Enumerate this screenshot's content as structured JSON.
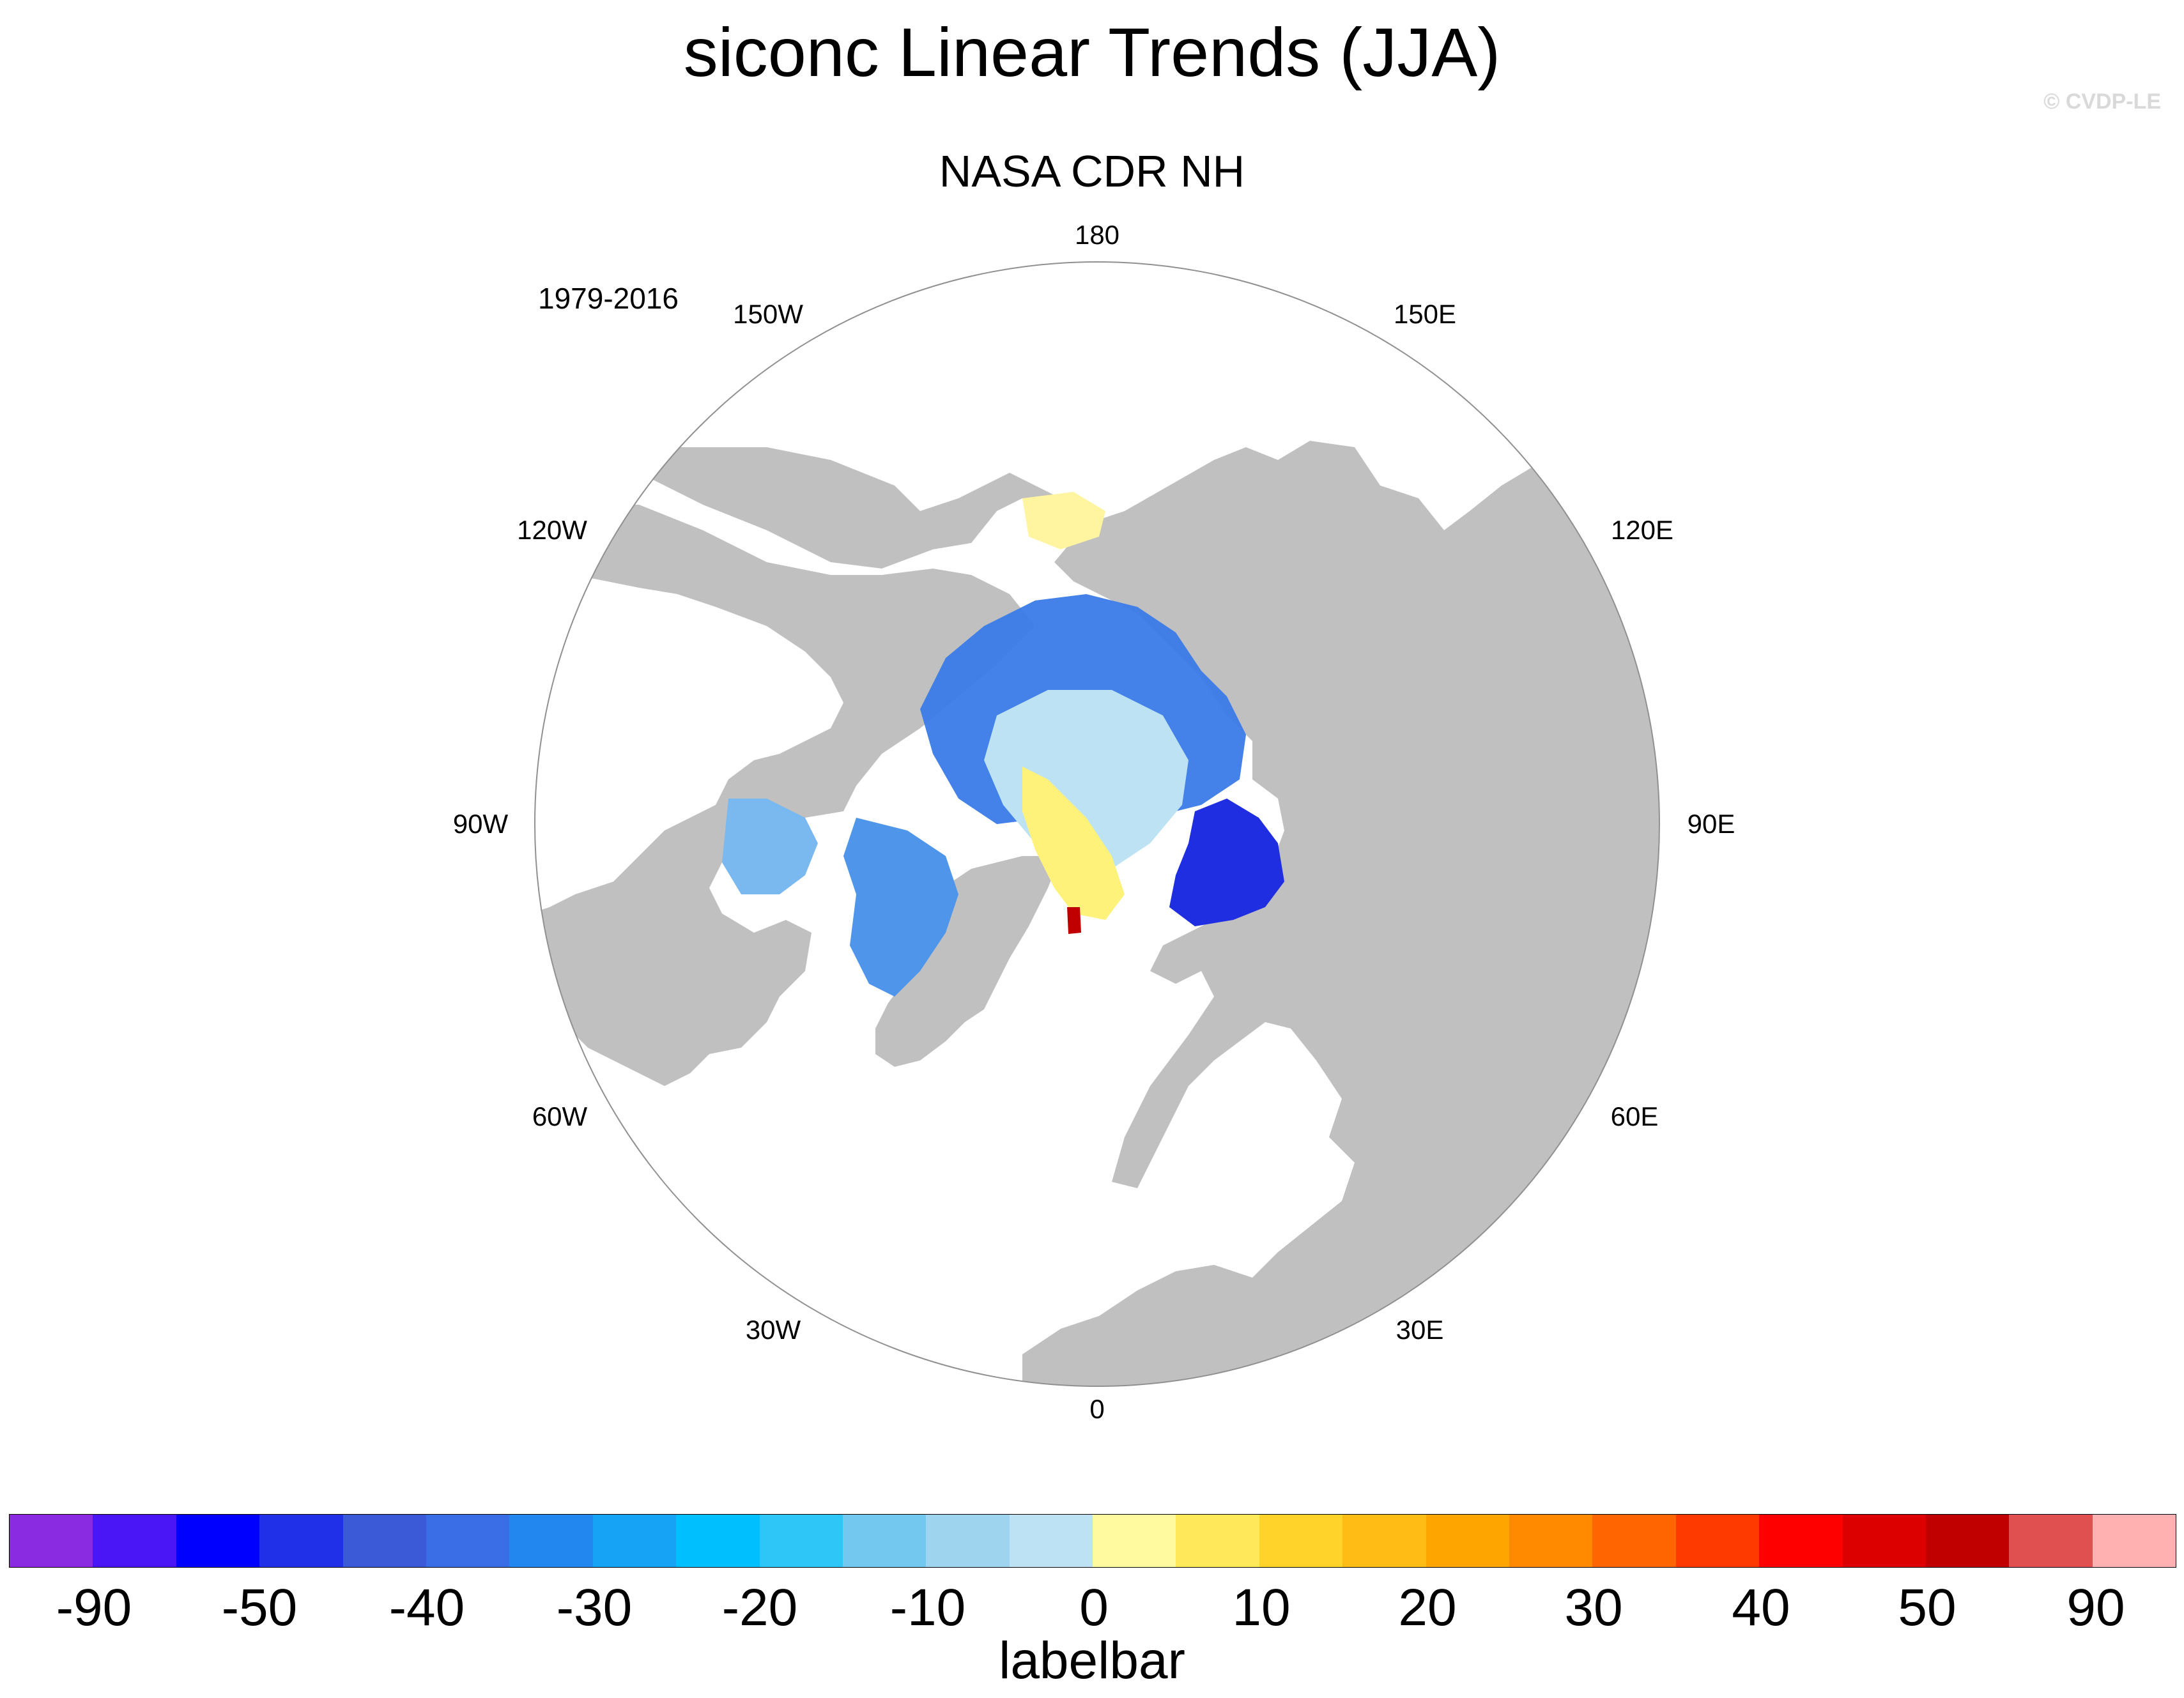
{
  "title": "siconc Linear Trends (JJA)",
  "copyright": "© CVDP-LE",
  "subtitle": "NASA CDR NH",
  "period": "1979-2016",
  "longitude_labels": [
    "180",
    "150E",
    "120E",
    "90E",
    "60E",
    "30E",
    "0",
    "30W",
    "60W",
    "90W",
    "120W",
    "150W"
  ],
  "labelbar": {
    "title": "labelbar",
    "colors": [
      "#8a2be2",
      "#4b16f5",
      "#0000ff",
      "#2030e8",
      "#3a5ad8",
      "#3a6ee6",
      "#2288f0",
      "#17a3f5",
      "#00bfff",
      "#2ec5f7",
      "#73c8f0",
      "#9fd4ef",
      "#bde2f4",
      "#fffaa0",
      "#ffe95a",
      "#ffd32a",
      "#ffbc14",
      "#ffa500",
      "#ff8a00",
      "#ff6500",
      "#ff3a00",
      "#ff0000",
      "#dd0000",
      "#c00000",
      "#e05050",
      "#ffb0b0"
    ],
    "tick_labels": [
      "-90",
      "-50",
      "-40",
      "-30",
      "-20",
      "-10",
      "0",
      "10",
      "20",
      "30",
      "40",
      "50",
      "90"
    ]
  },
  "colors": {
    "land": "#c0c0c0",
    "ocean": "#ffffff",
    "boundary": "#909090"
  }
}
